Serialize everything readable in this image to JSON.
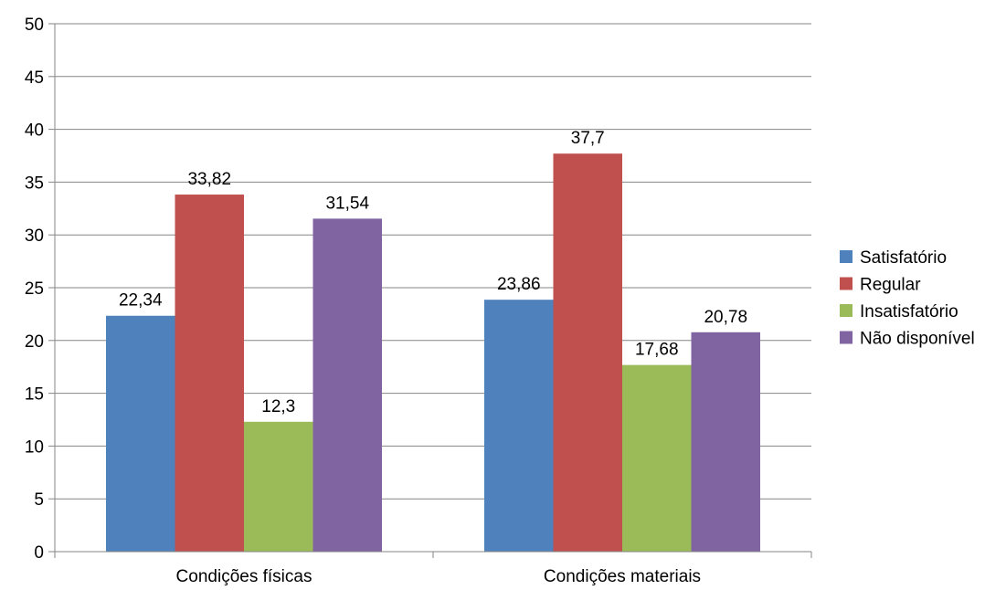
{
  "chart_data": {
    "type": "bar",
    "categories": [
      "Condições físicas",
      "Condições materiais"
    ],
    "series": [
      {
        "name": "Satisfatório",
        "values": [
          22.34,
          23.86
        ],
        "labels": [
          "22,34",
          "23,86"
        ],
        "color": "#4F81BD"
      },
      {
        "name": "Regular",
        "values": [
          33.82,
          37.7
        ],
        "labels": [
          "33,82",
          "37,7"
        ],
        "color": "#C0504D"
      },
      {
        "name": "Insatisfatório",
        "values": [
          12.3,
          17.68
        ],
        "labels": [
          "12,3",
          "17,68"
        ],
        "color": "#9BBB59"
      },
      {
        "name": "Não disponível",
        "values": [
          31.54,
          20.78
        ],
        "labels": [
          "31,54",
          "20,78"
        ],
        "color": "#8064A2"
      }
    ],
    "ylim": [
      0,
      50
    ],
    "yticks": [
      0,
      5,
      10,
      15,
      20,
      25,
      30,
      35,
      40,
      45,
      50
    ],
    "grid": true,
    "legend": "right",
    "title": "",
    "xlabel": "",
    "ylabel": ""
  }
}
